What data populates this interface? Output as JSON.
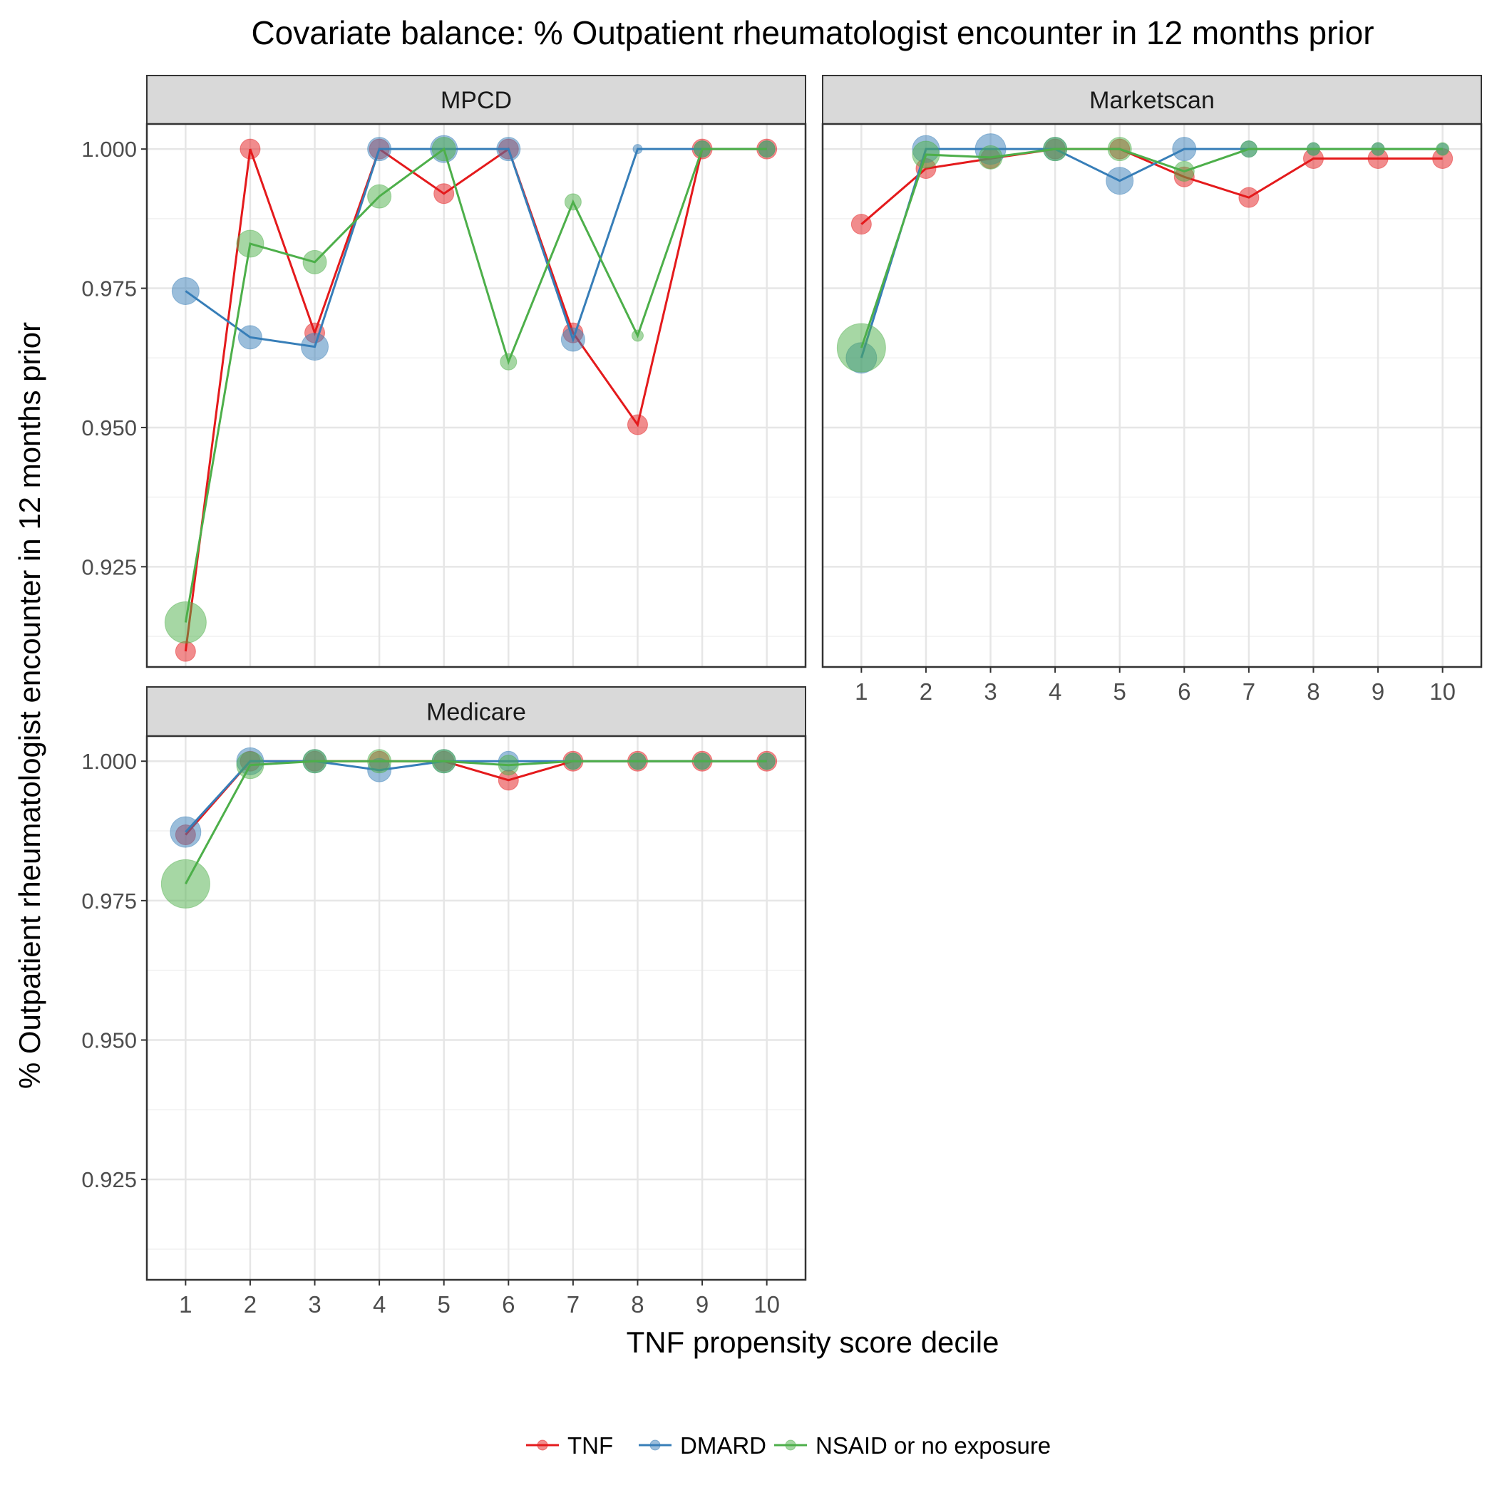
{
  "chart_data": {
    "type": "line",
    "title": "Covariate balance: % Outpatient rheumatologist encounter in 12 months prior",
    "xlabel": "TNF propensity score decile",
    "ylabel": "% Outpatient rheumatologist encounter in 12 months prior",
    "x": [
      1,
      2,
      3,
      4,
      5,
      6,
      7,
      8,
      9,
      10
    ],
    "ylim": [
      0.907,
      1.0045
    ],
    "y_ticks": [
      0.925,
      0.95,
      0.975,
      1.0
    ],
    "y_tick_labels": [
      "0.925",
      "0.950",
      "0.975",
      "1.000"
    ],
    "x_tick_labels": [
      "1",
      "2",
      "3",
      "4",
      "5",
      "6",
      "7",
      "8",
      "9",
      "10"
    ],
    "grid": true,
    "legend_position": "bottom",
    "series_colors": {
      "TNF": "#e41a1c",
      "DMARD": "#377eb8",
      "NSAID or no exposure": "#4daf4a"
    },
    "legend": [
      {
        "name": "TNF",
        "color": "#e41a1c"
      },
      {
        "name": "DMARD",
        "color": "#377eb8"
      },
      {
        "name": "NSAID or no exposure",
        "color": "#4daf4a"
      }
    ],
    "panels": [
      {
        "name": "MPCD",
        "series": [
          {
            "name": "TNF",
            "values": [
              0.9098,
              1.0,
              0.967,
              1.0,
              0.992,
              1.0,
              0.967,
              0.9505,
              1.0,
              1.0
            ],
            "sizes": [
              2,
              2,
              2,
              2,
              2,
              2,
              2,
              2,
              2,
              2
            ]
          },
          {
            "name": "DMARD",
            "values": [
              0.9745,
              0.9662,
              0.9645,
              1.0,
              1.0,
              1.0,
              0.9658,
              1.0,
              1.0,
              1.0
            ],
            "sizes": [
              3,
              2.5,
              3,
              2.5,
              3,
              2.5,
              2.5,
              0.5,
              1.5,
              1.5
            ]
          },
          {
            "name": "NSAID or no exposure",
            "values": [
              0.915,
              0.983,
              0.9797,
              0.9915,
              1.0,
              0.9618,
              0.9905,
              0.9665,
              1.0,
              1.0
            ],
            "sizes": [
              5,
              3,
              2.5,
              2.5,
              2.5,
              1.5,
              1.5,
              0.8,
              1.5,
              1.5
            ]
          }
        ]
      },
      {
        "name": "Marketscan",
        "series": [
          {
            "name": "TNF",
            "values": [
              0.9865,
              0.9965,
              0.9983,
              1.0,
              1.0,
              0.995,
              0.9913,
              0.9983,
              0.9983,
              0.9983
            ],
            "sizes": [
              2,
              2,
              2,
              2,
              2,
              2,
              2,
              2,
              2,
              2
            ]
          },
          {
            "name": "DMARD",
            "values": [
              0.9625,
              1.0,
              1.0,
              1.0,
              0.9943,
              1.0,
              1.0,
              1.0,
              1.0,
              1.0
            ],
            "sizes": [
              3.5,
              3,
              3.5,
              2.5,
              3,
              2.5,
              1.5,
              1,
              1,
              0.8
            ]
          },
          {
            "name": "NSAID or no exposure",
            "values": [
              0.9643,
              0.999,
              0.9985,
              1.0,
              1.0,
              0.996,
              1.0,
              1.0,
              1.0,
              1.0
            ],
            "sizes": [
              6,
              3,
              2.5,
              2.5,
              2.5,
              2,
              1.5,
              1,
              1,
              1
            ]
          }
        ]
      },
      {
        "name": "Medicare",
        "series": [
          {
            "name": "TNF",
            "values": [
              0.9868,
              1.0,
              1.0,
              1.0,
              1.0,
              0.9966,
              1.0,
              1.0,
              1.0,
              1.0
            ],
            "sizes": [
              2,
              2,
              2,
              2,
              2,
              2,
              2,
              2,
              2,
              2
            ]
          },
          {
            "name": "DMARD",
            "values": [
              0.9873,
              1.0,
              1.0,
              0.9984,
              1.0,
              1.0,
              1.0,
              1.0,
              1.0,
              1.0
            ],
            "sizes": [
              3.5,
              3,
              2.5,
              2.5,
              2.5,
              2,
              1.5,
              1.5,
              1.5,
              1.5
            ]
          },
          {
            "name": "NSAID or no exposure",
            "values": [
              0.978,
              0.9993,
              1.0,
              1.0,
              1.0,
              0.9993,
              1.0,
              1.0,
              1.0,
              1.0
            ],
            "sizes": [
              6,
              3,
              2.5,
              2.5,
              2.5,
              2,
              1.5,
              1.5,
              1.5,
              1.5
            ]
          }
        ]
      }
    ]
  }
}
